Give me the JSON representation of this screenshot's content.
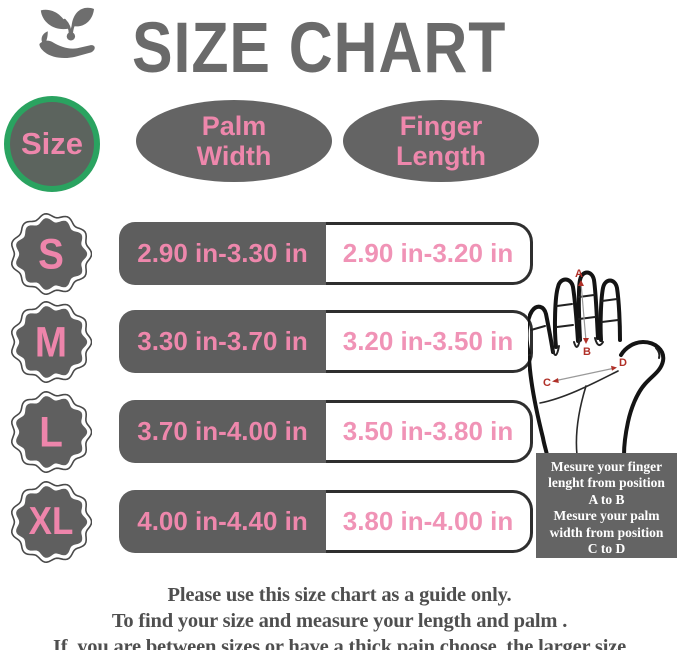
{
  "title": "SIZE CHART",
  "columns": {
    "size": "Size",
    "palm": [
      "Palm",
      "Width"
    ],
    "finger": [
      "Finger",
      "Length"
    ]
  },
  "rows": [
    {
      "size": "S",
      "palm_width": "2.90 in-3.30 in",
      "finger_length": "2.90 in-3.20 in"
    },
    {
      "size": "M",
      "palm_width": "3.30 in-3.70 in",
      "finger_length": "3.20 in-3.50 in"
    },
    {
      "size": "L",
      "palm_width": "3.70 in-4.00 in",
      "finger_length": "3.50 in-3.80 in"
    },
    {
      "size": "XL",
      "palm_width": "4.00 in-4.40 in",
      "finger_length": "3.80 in-4.00 in"
    }
  ],
  "hand_diagram": {
    "point_labels": {
      "a": "A",
      "b": "B",
      "c": "C",
      "d": "D"
    },
    "instructions": [
      "Mesure your finger",
      "lenght from position",
      "A to B",
      "Mesure your palm",
      "width from position",
      "C to D"
    ]
  },
  "footer": [
    "Please use this size chart as a guide only.",
    "To find your size and measure your length and palm .",
    "If  you are between sizes or have a thick pain,choose  the larger size"
  ],
  "colors": {
    "pink": "#ee87ac",
    "cell_gray": "#5e5e5e",
    "ellipse_gray": "#646464",
    "title_gray": "#6a6a6a",
    "green_ring": "#2aa360",
    "label_red": "#b03028",
    "footer_gray": "#4f4f4f"
  }
}
